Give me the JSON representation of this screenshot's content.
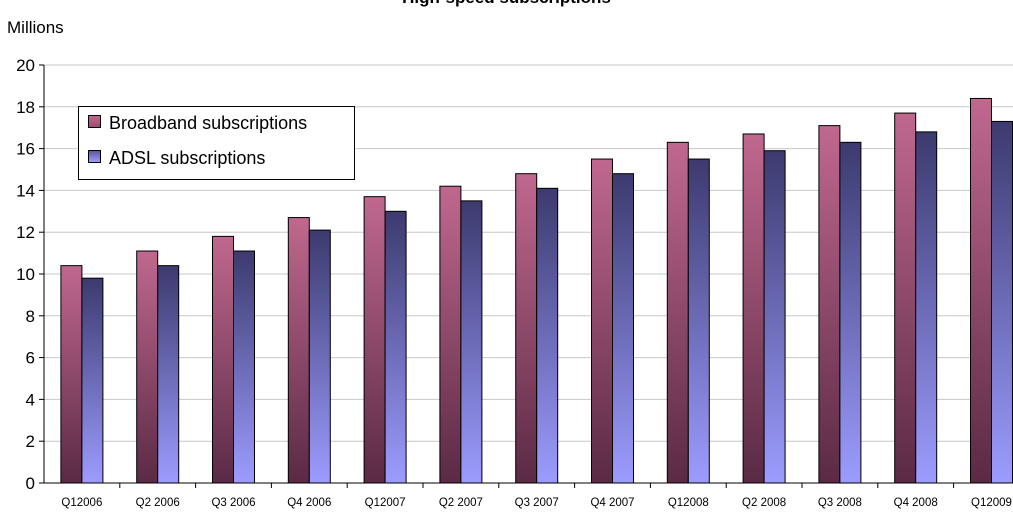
{
  "chart_data": {
    "type": "bar",
    "title": "High-speed subscriptions",
    "units_label": "Millions",
    "categories": [
      "Q12006",
      "Q2 2006",
      "Q3 2006",
      "Q4 2006",
      "Q12007",
      "Q2 2007",
      "Q3 2007",
      "Q4 2007",
      "Q12008",
      "Q2 2008",
      "Q3 2008",
      "Q4 2008",
      "Q12009"
    ],
    "series": [
      {
        "name": "Broadband subscriptions",
        "color": "#a04c72",
        "values": [
          10.4,
          11.1,
          11.8,
          12.7,
          13.7,
          14.2,
          14.8,
          15.5,
          16.3,
          16.7,
          17.1,
          17.7,
          18.4
        ]
      },
      {
        "name": "ADSL subscriptions",
        "color": "#5a5a9e",
        "values": [
          9.8,
          10.4,
          11.1,
          12.1,
          13.0,
          13.5,
          14.1,
          14.8,
          15.5,
          15.9,
          16.3,
          16.8,
          17.3
        ]
      }
    ],
    "ylim": [
      0,
      20
    ],
    "yticks": [
      0,
      2,
      4,
      6,
      8,
      10,
      12,
      14,
      16,
      18,
      20
    ],
    "grid": true,
    "legend_position": "top-left"
  }
}
